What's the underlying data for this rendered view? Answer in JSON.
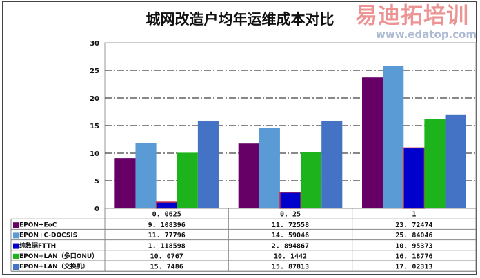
{
  "chart_data": {
    "type": "bar",
    "title": "城网改造户均年运维成本对比",
    "categories": [
      "0.0625",
      "0.25",
      "1"
    ],
    "category_labels": [
      "0. 0625",
      "0. 25",
      "1"
    ],
    "ylim": [
      0,
      30
    ],
    "yticks": [
      0,
      5,
      10,
      15,
      20,
      25,
      30
    ],
    "grid": true,
    "legend": "data-table-bottom",
    "series": [
      {
        "name": "EPON+EoC",
        "color": "#660066",
        "values": [
          9.108396,
          11.72558,
          23.72474
        ],
        "labels": [
          "9. 108396",
          "11. 72558",
          "23. 72474"
        ]
      },
      {
        "name": "EPON+C-DOCSIS",
        "color": "#5B9BD5",
        "values": [
          11.77796,
          14.59046,
          25.84046
        ],
        "labels": [
          "11. 77796",
          "14. 59046",
          "25. 84046"
        ]
      },
      {
        "name": "纯数据FTTH",
        "color": "#0000CC",
        "border": "#C0304A",
        "values": [
          1.118598,
          2.894867,
          10.95373
        ],
        "labels": [
          "1. 118598",
          "2. 894867",
          "10. 95373"
        ]
      },
      {
        "name": "EPON+LAN（多口ONU）",
        "color": "#1DB31D",
        "values": [
          10.0767,
          10.1442,
          16.18776
        ],
        "labels": [
          "10. 0767",
          "10. 1442",
          "16. 18776"
        ]
      },
      {
        "name": "EPON+LAN（交换机）",
        "color": "#4472C4",
        "values": [
          15.7486,
          15.87813,
          17.02313
        ],
        "labels": [
          "15. 7486",
          "15. 87813",
          "17. 02313"
        ]
      }
    ]
  },
  "watermark": {
    "brand": "易迪拓培训",
    "url": "www.edatop.com"
  }
}
